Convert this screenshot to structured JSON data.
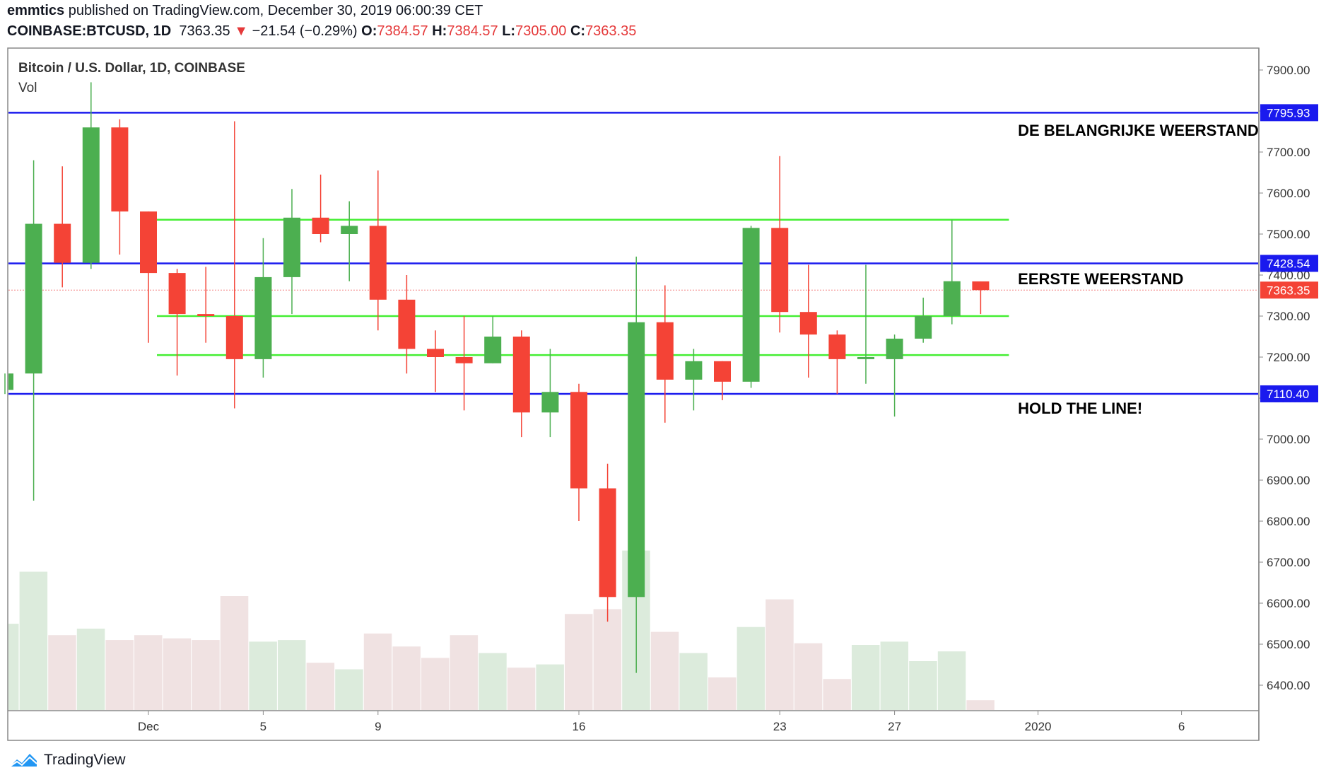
{
  "header": {
    "author": "emmtics",
    "published_text": "published on TradingView.com, December 30, 2019 06:00:39 CET",
    "symbol": "COINBASE:BTCUSD, 1D",
    "last_price": "7363.35",
    "change_arrow": "▼",
    "change": "−21.54 (−0.29%)",
    "o_label": "O:",
    "o_value": "7384.57",
    "h_label": "H:",
    "h_value": "7384.57",
    "l_label": "L:",
    "l_value": "7305.00",
    "c_label": "C:",
    "c_value": "7363.35"
  },
  "legend": {
    "title": "Bitcoin / U.S. Dollar, 1D, COINBASE",
    "vol": "Vol"
  },
  "footer": {
    "brand": "TradingView"
  },
  "colors": {
    "up": "#4caf50",
    "down": "#f44336",
    "support_line": "#44ee33",
    "key_line": "#1a1aee",
    "price_tag": "#f44336",
    "vol_up": "#dcebdc",
    "vol_down": "#f0e2e2"
  },
  "chart_data": {
    "type": "candlestick",
    "title": "Bitcoin / U.S. Dollar, 1D, COINBASE",
    "ylim": [
      6340,
      7950
    ],
    "y_ticks": [
      "7900.00",
      "7800.00",
      "7700.00",
      "7600.00",
      "7500.00",
      "7400.00",
      "7300.00",
      "7200.00",
      "7100.00",
      "7000.00",
      "6900.00",
      "6800.00",
      "6700.00",
      "6600.00",
      "6500.00",
      "6400.00"
    ],
    "y_tick_values": [
      7900,
      7800,
      7700,
      7600,
      7500,
      7400,
      7300,
      7200,
      7100,
      7000,
      6900,
      6800,
      6700,
      6600,
      6500,
      6400
    ],
    "x_ticks": [
      {
        "label": "Dec",
        "day": 0
      },
      {
        "label": "5",
        "day": 4
      },
      {
        "label": "9",
        "day": 8
      },
      {
        "label": "16",
        "day": 15
      },
      {
        "label": "23",
        "day": 22
      },
      {
        "label": "27",
        "day": 26
      },
      {
        "label": "2020",
        "day": 31
      },
      {
        "label": "6",
        "day": 36
      }
    ],
    "candles": [
      {
        "day": -5,
        "o": 7120,
        "h": 7160,
        "l": 7110,
        "c": 7160
      },
      {
        "day": -4,
        "o": 7160,
        "h": 7680,
        "l": 6850,
        "c": 7525
      },
      {
        "day": -3,
        "o": 7525,
        "h": 7665,
        "l": 7370,
        "c": 7430
      },
      {
        "day": -2,
        "o": 7430,
        "h": 7870,
        "l": 7415,
        "c": 7760
      },
      {
        "day": -1,
        "o": 7760,
        "h": 7780,
        "l": 7450,
        "c": 7555
      },
      {
        "day": 0,
        "o": 7555,
        "h": 7555,
        "l": 7235,
        "c": 7405
      },
      {
        "day": 1,
        "o": 7405,
        "h": 7415,
        "l": 7155,
        "c": 7305
      },
      {
        "day": 2,
        "o": 7305,
        "h": 7420,
        "l": 7235,
        "c": 7300
      },
      {
        "day": 3,
        "o": 7300,
        "h": 7775,
        "l": 7075,
        "c": 7195
      },
      {
        "day": 4,
        "o": 7195,
        "h": 7490,
        "l": 7150,
        "c": 7395
      },
      {
        "day": 5,
        "o": 7395,
        "h": 7610,
        "l": 7305,
        "c": 7540
      },
      {
        "day": 6,
        "o": 7540,
        "h": 7645,
        "l": 7480,
        "c": 7500
      },
      {
        "day": 7,
        "o": 7500,
        "h": 7580,
        "l": 7385,
        "c": 7520
      },
      {
        "day": 8,
        "o": 7520,
        "h": 7655,
        "l": 7265,
        "c": 7340
      },
      {
        "day": 9,
        "o": 7340,
        "h": 7400,
        "l": 7160,
        "c": 7220
      },
      {
        "day": 10,
        "o": 7220,
        "h": 7265,
        "l": 7115,
        "c": 7200
      },
      {
        "day": 11,
        "o": 7200,
        "h": 7300,
        "l": 7070,
        "c": 7185
      },
      {
        "day": 12,
        "o": 7185,
        "h": 7300,
        "l": 7185,
        "c": 7250
      },
      {
        "day": 13,
        "o": 7250,
        "h": 7265,
        "l": 7005,
        "c": 7065
      },
      {
        "day": 14,
        "o": 7065,
        "h": 7220,
        "l": 7005,
        "c": 7115
      },
      {
        "day": 15,
        "o": 7115,
        "h": 7135,
        "l": 6800,
        "c": 6880
      },
      {
        "day": 16,
        "o": 6880,
        "h": 6940,
        "l": 6555,
        "c": 6615
      },
      {
        "day": 17,
        "o": 6615,
        "h": 7445,
        "l": 6430,
        "c": 7285
      },
      {
        "day": 18,
        "o": 7285,
        "h": 7375,
        "l": 7040,
        "c": 7145
      },
      {
        "day": 19,
        "o": 7145,
        "h": 7220,
        "l": 7070,
        "c": 7190
      },
      {
        "day": 20,
        "o": 7190,
        "h": 7190,
        "l": 7095,
        "c": 7140
      },
      {
        "day": 21,
        "o": 7140,
        "h": 7520,
        "l": 7125,
        "c": 7515
      },
      {
        "day": 22,
        "o": 7515,
        "h": 7690,
        "l": 7260,
        "c": 7310
      },
      {
        "day": 23,
        "o": 7310,
        "h": 7425,
        "l": 7150,
        "c": 7255
      },
      {
        "day": 24,
        "o": 7255,
        "h": 7265,
        "l": 7110,
        "c": 7195
      },
      {
        "day": 25,
        "o": 7195,
        "h": 7425,
        "l": 7135,
        "c": 7200
      },
      {
        "day": 26,
        "o": 7195,
        "h": 7255,
        "l": 7055,
        "c": 7245
      },
      {
        "day": 27,
        "o": 7245,
        "h": 7345,
        "l": 7235,
        "c": 7300
      },
      {
        "day": 28,
        "o": 7300,
        "h": 7535,
        "l": 7280,
        "c": 7385
      },
      {
        "day": 29,
        "o": 7384.57,
        "h": 7384.57,
        "l": 7305,
        "c": 7363.35
      }
    ],
    "volume_scale": [
      0,
      1.0
    ],
    "volumes": [
      0.53,
      0.85,
      0.46,
      0.5,
      0.43,
      0.46,
      0.44,
      0.43,
      0.7,
      0.42,
      0.43,
      0.29,
      0.25,
      0.47,
      0.39,
      0.32,
      0.46,
      0.35,
      0.26,
      0.28,
      0.59,
      0.62,
      0.98,
      0.48,
      0.35,
      0.2,
      0.51,
      0.68,
      0.41,
      0.19,
      0.4,
      0.42,
      0.3,
      0.36,
      0.06
    ],
    "horizontal_lines": [
      {
        "price": 7795.93,
        "kind": "key",
        "tag": "7795.93"
      },
      {
        "price": 7428.54,
        "kind": "key",
        "tag": "7428.54"
      },
      {
        "price": 7110.4,
        "kind": "key",
        "tag": "7110.40"
      },
      {
        "price": 7535,
        "kind": "support"
      },
      {
        "price": 7300,
        "kind": "support"
      },
      {
        "price": 7205,
        "kind": "support"
      }
    ],
    "last_price_line": {
      "price": 7363.35,
      "tag": "7363.35"
    },
    "annotations": [
      {
        "text": "DE BELANGRIJKE WEERSTAND",
        "day": 30.3,
        "price": 7740
      },
      {
        "text": "EERSTE WEERSTAND",
        "day": 30.3,
        "price": 7378
      },
      {
        "text": "HOLD THE LINE!",
        "day": 30.3,
        "price": 7062
      }
    ]
  }
}
